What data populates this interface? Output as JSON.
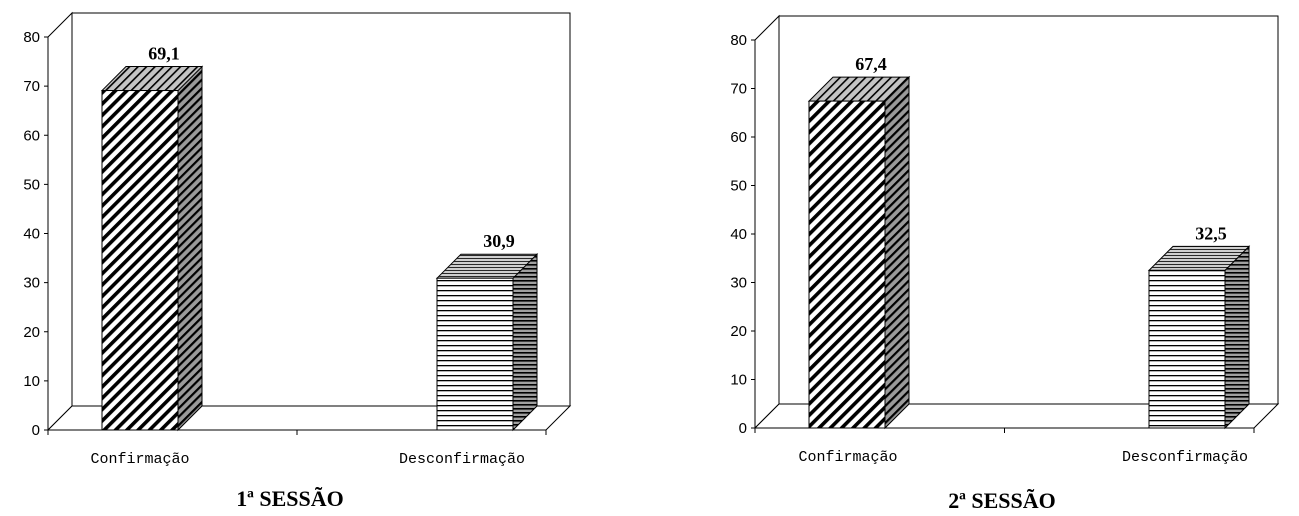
{
  "chart_data": [
    {
      "type": "bar",
      "title": "1ª SESSÃO",
      "categories": [
        "Confirmação",
        "Desconfirmação"
      ],
      "values": [
        69.1,
        30.9
      ],
      "data_labels": [
        "69,1",
        "30,9"
      ],
      "ylim": [
        0,
        80
      ],
      "yticks": [
        "0",
        "10",
        "20",
        "30",
        "40",
        "50",
        "60",
        "70",
        "80"
      ],
      "xlabel": "",
      "ylabel": "",
      "grid": false,
      "bar_fills": [
        "diagonal-hatch",
        "horizontal-hatch"
      ]
    },
    {
      "type": "bar",
      "title": "2ª SESSÃO",
      "categories": [
        "Confirmação",
        "Desconfirmação"
      ],
      "values": [
        67.4,
        32.5
      ],
      "data_labels": [
        "67,4",
        "32,5"
      ],
      "ylim": [
        0,
        80
      ],
      "yticks": [
        "0",
        "10",
        "20",
        "30",
        "40",
        "50",
        "60",
        "70",
        "80"
      ],
      "xlabel": "",
      "ylabel": "",
      "grid": false,
      "bar_fills": [
        "diagonal-hatch",
        "horizontal-hatch"
      ]
    }
  ]
}
